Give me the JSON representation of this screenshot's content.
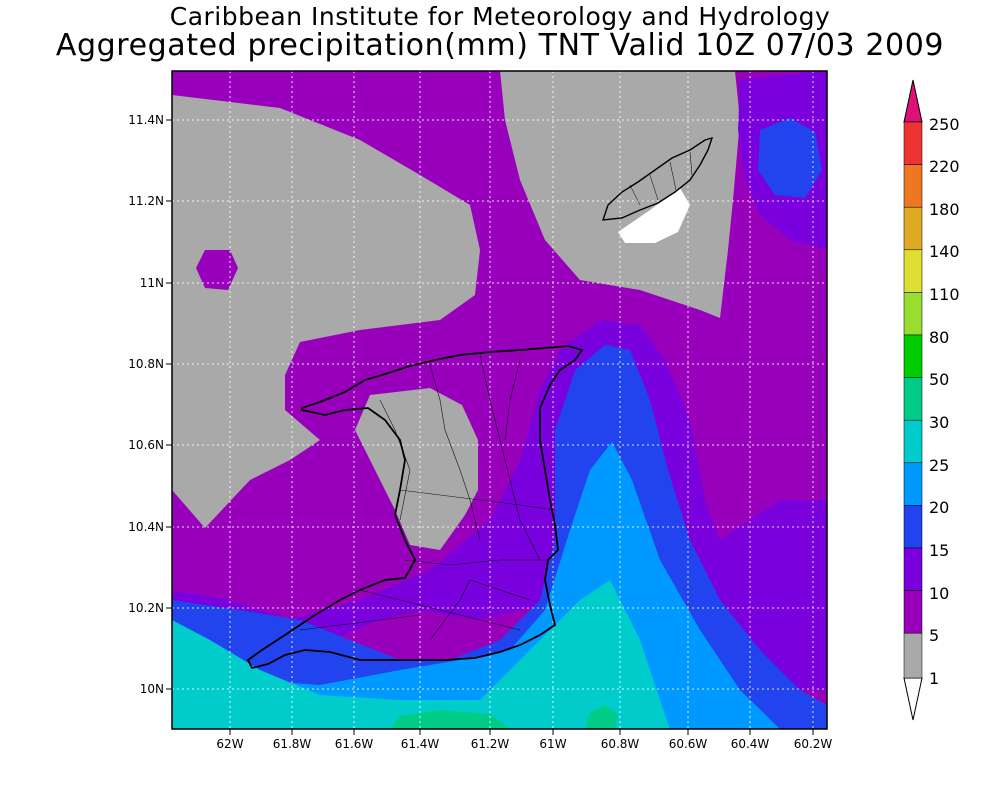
{
  "titles": {
    "line1": "Caribbean Institute for Meteorology and Hydrology",
    "line2": "Aggregated precipitation(mm) TNT Valid 10Z 07/03 2009"
  },
  "axes": {
    "lon_ticks": [
      "62W",
      "61.8W",
      "61.6W",
      "61.4W",
      "61.2W",
      "61W",
      "60.8W",
      "60.6W",
      "60.4W",
      "60.2W"
    ],
    "lat_ticks": [
      "11.4N",
      "11.2N",
      "11N",
      "10.8N",
      "10.6N",
      "10.4N",
      "10.2N",
      "10N"
    ],
    "lon_range": [
      -62.15,
      -60.18
    ],
    "lat_range": [
      9.9,
      11.52
    ]
  },
  "colorbar": {
    "labels": [
      "1",
      "5",
      "10",
      "15",
      "20",
      "25",
      "30",
      "50",
      "80",
      "110",
      "140",
      "180",
      "220",
      "250"
    ],
    "colors": [
      "#ffffff",
      "#a9a9a9",
      "#9900bb",
      "#7a00dd",
      "#2244ee",
      "#0099ff",
      "#00cccc",
      "#00cc88",
      "#00cc00",
      "#99dd33",
      "#dddd33",
      "#ddaa22",
      "#ee7722",
      "#ee3333",
      "#dd1177"
    ]
  },
  "fields": {
    "ocean_fill": "#9900bb",
    "land_outline": "#000000"
  }
}
